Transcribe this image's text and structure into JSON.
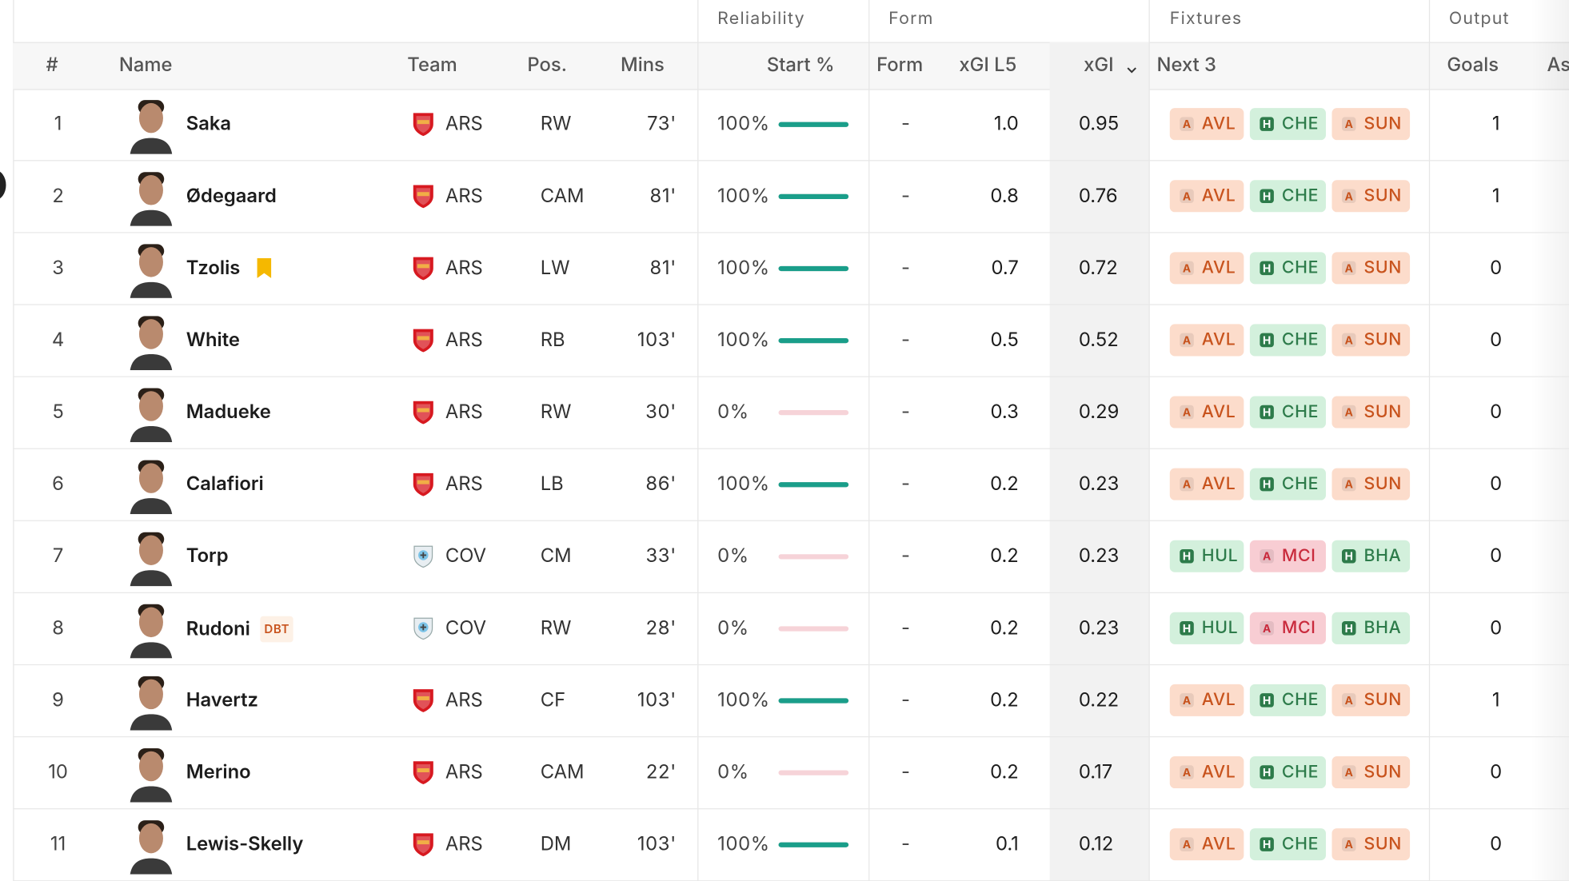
{
  "table": {
    "groups": [
      "Reliability",
      "Form",
      "Fixtures",
      "Output"
    ],
    "columns": [
      "#",
      "Name",
      "Team",
      "Pos.",
      "Mins",
      "Start %",
      "Form",
      "xGI L5",
      "xGI",
      "Next 3",
      "Goals",
      "As"
    ],
    "rows": [
      {
        "rank": "1",
        "name": "Saka",
        "team": "ARS",
        "pos": "RW",
        "mins": "73'",
        "start": "100%",
        "form": "-",
        "xgi_l5": "1.0",
        "xgi": "0.95",
        "next3": [
          {
            "venue": "A",
            "team": "AVL",
            "color": "orange"
          },
          {
            "venue": "H",
            "team": "CHE",
            "color": "green"
          },
          {
            "venue": "A",
            "team": "SUN",
            "color": "orange"
          }
        ],
        "goals": "1"
      },
      {
        "rank": "2",
        "name": "Ødegaard",
        "team": "ARS",
        "pos": "CAM",
        "mins": "81'",
        "start": "100%",
        "form": "-",
        "xgi_l5": "0.8",
        "xgi": "0.76",
        "next3": [
          {
            "venue": "A",
            "team": "AVL",
            "color": "orange"
          },
          {
            "venue": "H",
            "team": "CHE",
            "color": "green"
          },
          {
            "venue": "A",
            "team": "SUN",
            "color": "orange"
          }
        ],
        "goals": "1"
      },
      {
        "rank": "3",
        "name": "Tzolis",
        "bookmark": true,
        "team": "ARS",
        "pos": "LW",
        "mins": "81'",
        "start": "100%",
        "form": "-",
        "xgi_l5": "0.7",
        "xgi": "0.72",
        "next3": [
          {
            "venue": "A",
            "team": "AVL",
            "color": "orange"
          },
          {
            "venue": "H",
            "team": "CHE",
            "color": "green"
          },
          {
            "venue": "A",
            "team": "SUN",
            "color": "orange"
          }
        ],
        "goals": "0"
      },
      {
        "rank": "4",
        "name": "White",
        "team": "ARS",
        "pos": "RB",
        "mins": "103'",
        "start": "100%",
        "form": "-",
        "xgi_l5": "0.5",
        "xgi": "0.52",
        "next3": [
          {
            "venue": "A",
            "team": "AVL",
            "color": "orange"
          },
          {
            "venue": "H",
            "team": "CHE",
            "color": "green"
          },
          {
            "venue": "A",
            "team": "SUN",
            "color": "orange"
          }
        ],
        "goals": "0"
      },
      {
        "rank": "5",
        "name": "Madueke",
        "team": "ARS",
        "pos": "RW",
        "mins": "30'",
        "start": "0%",
        "form": "-",
        "xgi_l5": "0.3",
        "xgi": "0.29",
        "next3": [
          {
            "venue": "A",
            "team": "AVL",
            "color": "orange"
          },
          {
            "venue": "H",
            "team": "CHE",
            "color": "green"
          },
          {
            "venue": "A",
            "team": "SUN",
            "color": "orange"
          }
        ],
        "goals": "0"
      },
      {
        "rank": "6",
        "name": "Calafiori",
        "team": "ARS",
        "pos": "LB",
        "mins": "86'",
        "start": "100%",
        "form": "-",
        "xgi_l5": "0.2",
        "xgi": "0.23",
        "next3": [
          {
            "venue": "A",
            "team": "AVL",
            "color": "orange"
          },
          {
            "venue": "H",
            "team": "CHE",
            "color": "green"
          },
          {
            "venue": "A",
            "team": "SUN",
            "color": "orange"
          }
        ],
        "goals": "0"
      },
      {
        "rank": "7",
        "name": "Torp",
        "team": "COV",
        "pos": "CM",
        "mins": "33'",
        "start": "0%",
        "form": "-",
        "xgi_l5": "0.2",
        "xgi": "0.23",
        "next3": [
          {
            "venue": "H",
            "team": "HUL",
            "color": "green"
          },
          {
            "venue": "A",
            "team": "MCI",
            "color": "red"
          },
          {
            "venue": "H",
            "team": "BHA",
            "color": "green"
          }
        ],
        "goals": "0"
      },
      {
        "rank": "8",
        "name": "Rudoni",
        "tag": "DBT",
        "team": "COV",
        "pos": "RW",
        "mins": "28'",
        "start": "0%",
        "form": "-",
        "xgi_l5": "0.2",
        "xgi": "0.23",
        "next3": [
          {
            "venue": "H",
            "team": "HUL",
            "color": "green"
          },
          {
            "venue": "A",
            "team": "MCI",
            "color": "red"
          },
          {
            "venue": "H",
            "team": "BHA",
            "color": "green"
          }
        ],
        "goals": "0"
      },
      {
        "rank": "9",
        "name": "Havertz",
        "team": "ARS",
        "pos": "CF",
        "mins": "103'",
        "start": "100%",
        "form": "-",
        "xgi_l5": "0.2",
        "xgi": "0.22",
        "next3": [
          {
            "venue": "A",
            "team": "AVL",
            "color": "orange"
          },
          {
            "venue": "H",
            "team": "CHE",
            "color": "green"
          },
          {
            "venue": "A",
            "team": "SUN",
            "color": "orange"
          }
        ],
        "goals": "1"
      },
      {
        "rank": "10",
        "name": "Merino",
        "team": "ARS",
        "pos": "CAM",
        "mins": "22'",
        "start": "0%",
        "form": "-",
        "xgi_l5": "0.2",
        "xgi": "0.17",
        "next3": [
          {
            "venue": "A",
            "team": "AVL",
            "color": "orange"
          },
          {
            "venue": "H",
            "team": "CHE",
            "color": "green"
          },
          {
            "venue": "A",
            "team": "SUN",
            "color": "orange"
          }
        ],
        "goals": "0"
      },
      {
        "rank": "11",
        "name": "Lewis-Skelly",
        "team": "ARS",
        "pos": "DM",
        "mins": "103'",
        "start": "100%",
        "form": "-",
        "xgi_l5": "0.1",
        "xgi": "0.12",
        "next3": [
          {
            "venue": "A",
            "team": "AVL",
            "color": "orange"
          },
          {
            "venue": "H",
            "team": "CHE",
            "color": "green"
          },
          {
            "venue": "A",
            "team": "SUN",
            "color": "orange"
          }
        ],
        "goals": "0"
      }
    ]
  }
}
